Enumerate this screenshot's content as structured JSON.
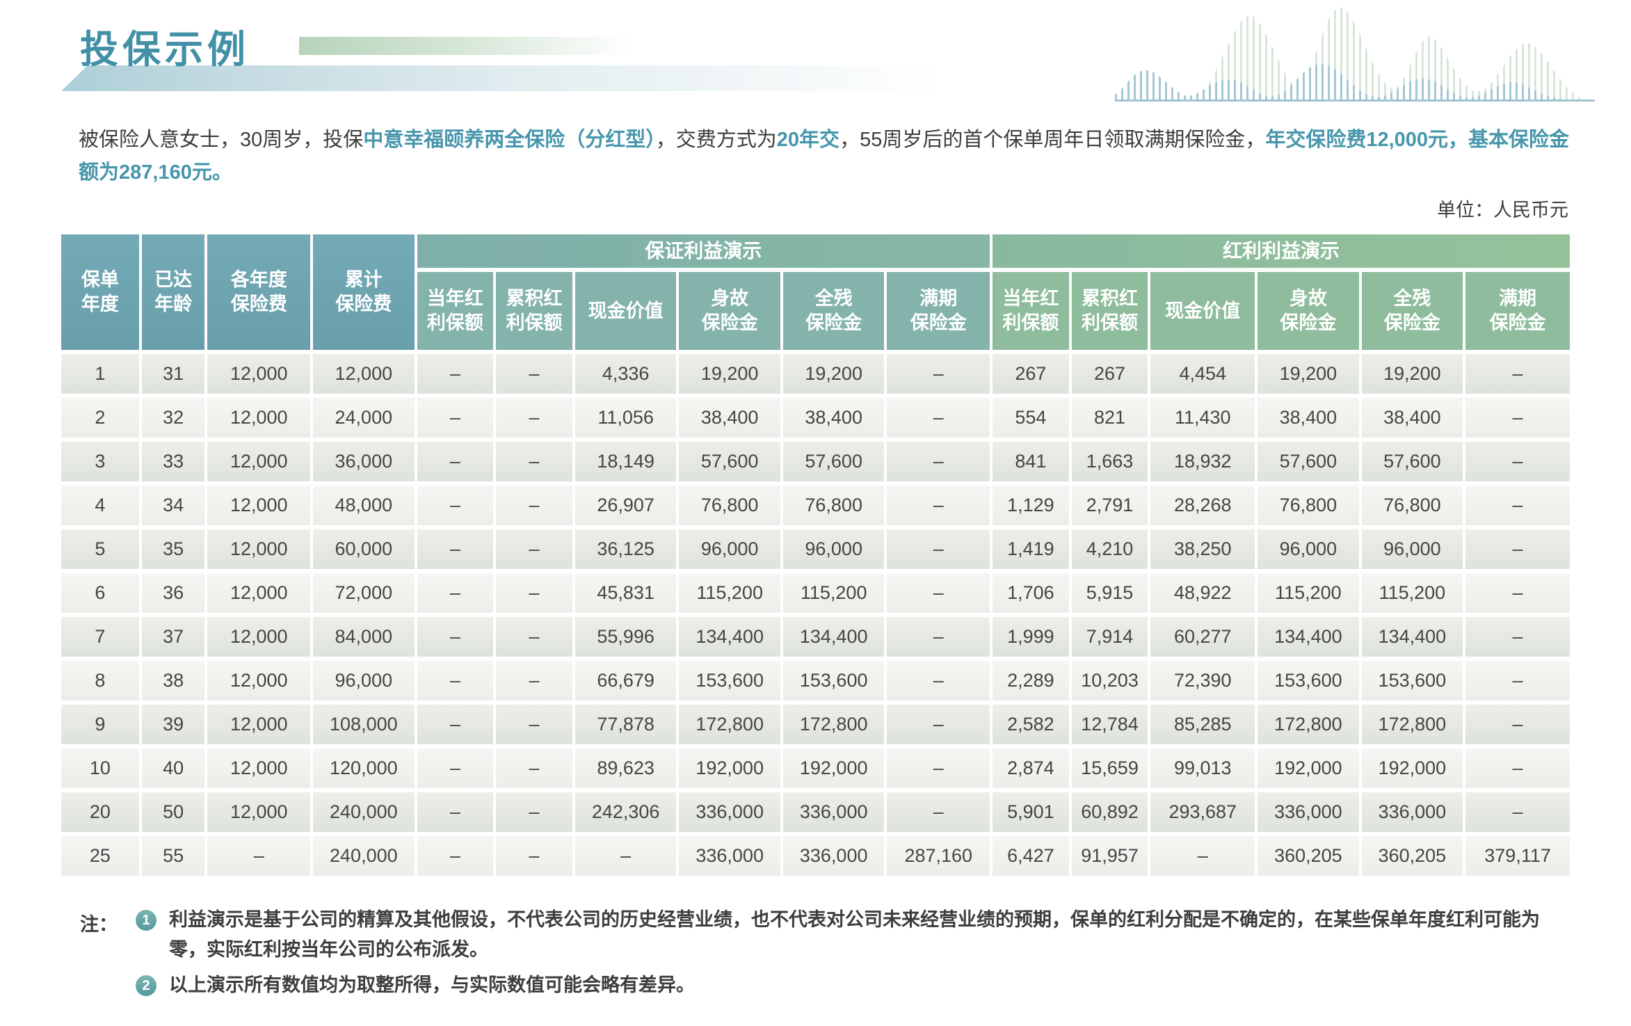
{
  "title": "投保示例",
  "unit_label": "单位：人民币元",
  "intro": {
    "seg1": "被保险人意女士，30周岁，投保",
    "seg2_hl": "中意幸福颐养两全保险（分红型）",
    "seg3": "，交费方式为",
    "seg4_hl": "20年交",
    "seg5": "，55周岁后的首个保单周年日领取满期保险金，",
    "seg6_hl": "年交保险费12,000元，基本保险金额为287,160元。"
  },
  "colors": {
    "title_teal": "#4190a5",
    "highlight_teal": "#4796ac",
    "header_fixed_blue": "#6fa9b3",
    "header_guaranteed_teal": "#83b3ab",
    "header_dividend_green": "#8ebc9c",
    "row_odd": "#e2e7df",
    "row_even": "#f1f4ef",
    "badge_teal": "#63a8ab"
  },
  "table": {
    "fixed_headers": [
      "保单\n年度",
      "已达\n年龄",
      "各年度\n保险费",
      "累计\n保险费"
    ],
    "groups": [
      {
        "label": "保证利益演示",
        "columns": [
          "当年红\n利保额",
          "累积红\n利保额",
          "现金价值",
          "身故\n保险金",
          "全残\n保险金",
          "满期\n保险金"
        ]
      },
      {
        "label": "红利利益演示",
        "columns": [
          "当年红\n利保额",
          "累积红\n利保额",
          "现金价值",
          "身故\n保险金",
          "全残\n保险金",
          "满期\n保险金"
        ]
      }
    ],
    "rows": [
      [
        "1",
        "31",
        "12,000",
        "12,000",
        "–",
        "–",
        "4,336",
        "19,200",
        "19,200",
        "–",
        "267",
        "267",
        "4,454",
        "19,200",
        "19,200",
        "–"
      ],
      [
        "2",
        "32",
        "12,000",
        "24,000",
        "–",
        "–",
        "11,056",
        "38,400",
        "38,400",
        "–",
        "554",
        "821",
        "11,430",
        "38,400",
        "38,400",
        "–"
      ],
      [
        "3",
        "33",
        "12,000",
        "36,000",
        "–",
        "–",
        "18,149",
        "57,600",
        "57,600",
        "–",
        "841",
        "1,663",
        "18,932",
        "57,600",
        "57,600",
        "–"
      ],
      [
        "4",
        "34",
        "12,000",
        "48,000",
        "–",
        "–",
        "26,907",
        "76,800",
        "76,800",
        "–",
        "1,129",
        "2,791",
        "28,268",
        "76,800",
        "76,800",
        "–"
      ],
      [
        "5",
        "35",
        "12,000",
        "60,000",
        "–",
        "–",
        "36,125",
        "96,000",
        "96,000",
        "–",
        "1,419",
        "4,210",
        "38,250",
        "96,000",
        "96,000",
        "–"
      ],
      [
        "6",
        "36",
        "12,000",
        "72,000",
        "–",
        "–",
        "45,831",
        "115,200",
        "115,200",
        "–",
        "1,706",
        "5,915",
        "48,922",
        "115,200",
        "115,200",
        "–"
      ],
      [
        "7",
        "37",
        "12,000",
        "84,000",
        "–",
        "–",
        "55,996",
        "134,400",
        "134,400",
        "–",
        "1,999",
        "7,914",
        "60,277",
        "134,400",
        "134,400",
        "–"
      ],
      [
        "8",
        "38",
        "12,000",
        "96,000",
        "–",
        "–",
        "66,679",
        "153,600",
        "153,600",
        "–",
        "2,289",
        "10,203",
        "72,390",
        "153,600",
        "153,600",
        "–"
      ],
      [
        "9",
        "39",
        "12,000",
        "108,000",
        "–",
        "–",
        "77,878",
        "172,800",
        "172,800",
        "–",
        "2,582",
        "12,784",
        "85,285",
        "172,800",
        "172,800",
        "–"
      ],
      [
        "10",
        "40",
        "12,000",
        "120,000",
        "–",
        "–",
        "89,623",
        "192,000",
        "192,000",
        "–",
        "2,874",
        "15,659",
        "99,013",
        "192,000",
        "192,000",
        "–"
      ],
      [
        "20",
        "50",
        "12,000",
        "240,000",
        "–",
        "–",
        "242,306",
        "336,000",
        "336,000",
        "–",
        "5,901",
        "60,892",
        "293,687",
        "336,000",
        "336,000",
        "–"
      ],
      [
        "25",
        "55",
        "–",
        "240,000",
        "–",
        "–",
        "–",
        "336,000",
        "336,000",
        "287,160",
        "6,427",
        "91,957",
        "–",
        "360,205",
        "360,205",
        "379,117"
      ]
    ]
  },
  "notes": {
    "label": "注：",
    "items": [
      {
        "num": "1",
        "text": "利益演示是基于公司的精算及其他假设，不代表公司的历史经营业绩，也不代表对公司未来经营业绩的预期，保单的红利分配是不确定的，在某些保单年度红利可能为零，实际红利按当年公司的公布派发。"
      },
      {
        "num": "2",
        "text": "以上演示所有数值均为取整所得，与实际数值可能会略有差异。"
      }
    ]
  }
}
